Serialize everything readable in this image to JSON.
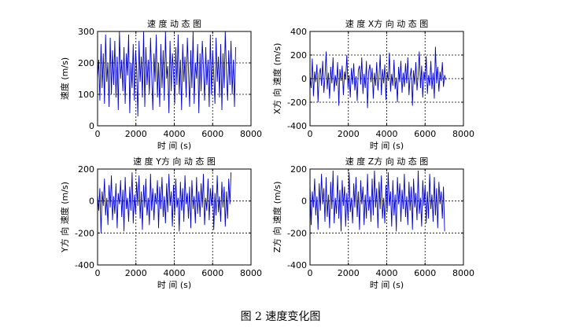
{
  "figure": {
    "caption": "图 2  速度变化图"
  },
  "colors": {
    "series": "#0000cc",
    "axis": "#000000"
  },
  "chart_data": [
    {
      "type": "line",
      "title": "速 度 动 态 图",
      "xlabel": "时 间 (s)",
      "ylabel": "速度 (m/s)",
      "xlim": [
        0,
        8000
      ],
      "ylim": [
        0,
        300
      ],
      "xticks": [
        0,
        2000,
        4000,
        6000,
        8000
      ],
      "yticks": [
        0,
        100,
        200,
        300
      ],
      "xtick_labels": [
        "0",
        "2000",
        "4000",
        "6000",
        "8000"
      ],
      "ytick_labels": [
        "0",
        "100",
        "200",
        "300"
      ],
      "grid": "dotted",
      "series": [
        {
          "x_start": 0,
          "x_step": 60,
          "values": [
            150,
            210,
            80,
            260,
            120,
            230,
            70,
            290,
            140,
            200,
            60,
            280,
            100,
            240,
            130,
            270,
            90,
            220,
            50,
            300,
            150,
            210,
            110,
            250,
            70,
            230,
            160,
            290,
            40,
            200,
            120,
            260,
            80,
            240,
            180,
            30,
            270,
            140,
            220,
            90,
            300,
            60,
            250,
            130,
            210,
            100,
            280,
            170,
            50,
            230,
            140,
            290,
            90,
            200,
            60,
            260,
            120,
            240,
            80,
            300,
            150,
            190,
            40,
            270,
            110,
            230,
            170,
            70,
            250,
            130,
            290,
            100,
            210,
            50,
            260,
            140,
            220,
            90,
            280,
            180,
            60,
            240,
            120,
            300,
            70,
            200,
            150,
            260,
            40,
            230,
            110,
            270,
            190,
            80,
            250,
            130,
            210,
            60,
            290,
            100,
            240,
            160,
            70,
            280,
            140,
            220,
            90,
            260,
            50,
            230,
            120,
            300,
            170,
            80,
            240,
            130,
            270,
            100,
            210,
            60,
            250
          ]
        }
      ]
    },
    {
      "type": "line",
      "title": "速 度 X方 向 动 态 图",
      "xlabel": "时 间 (s)",
      "ylabel": "X方 向 速度 (m/s)",
      "xlim": [
        0,
        8000
      ],
      "ylim": [
        -400,
        400
      ],
      "xticks": [
        0,
        2000,
        4000,
        6000,
        8000
      ],
      "yticks": [
        -400,
        -200,
        0,
        200,
        400
      ],
      "xtick_labels": [
        "0",
        "2000",
        "4000",
        "6000",
        "8000"
      ],
      "ytick_labels": [
        "-400",
        "-200",
        "0",
        "200",
        "400"
      ],
      "grid": "dotted",
      "series": [
        {
          "x_start": 0,
          "x_step": 60,
          "values": [
            20,
            -80,
            170,
            -150,
            60,
            -30,
            120,
            -200,
            40,
            90,
            -60,
            150,
            -120,
            10,
            230,
            -90,
            50,
            -170,
            100,
            -40,
            180,
            -110,
            30,
            -60,
            140,
            -230,
            80,
            -20,
            110,
            -140,
            60,
            -10,
            200,
            -80,
            30,
            -160,
            90,
            -50,
            130,
            -100,
            20,
            -190,
            70,
            110,
            -50,
            180,
            -130,
            40,
            -80,
            150,
            -250,
            60,
            120,
            -30,
            90,
            -170,
            50,
            -60,
            140,
            -100,
            30,
            200,
            -140,
            80,
            -40,
            120,
            -180,
            60,
            -20,
            220,
            -110,
            40,
            -60,
            160,
            -90,
            10,
            -200,
            100,
            -30,
            150,
            -120,
            50,
            -70,
            130,
            -40,
            180,
            -140,
            20,
            90,
            -230,
            70,
            -50,
            140,
            -100,
            40,
            230,
            -80,
            110,
            -160,
            60,
            -20,
            190,
            -130,
            30,
            -60,
            150,
            -90,
            50,
            -170,
            270,
            -40,
            100,
            -110,
            60,
            -20,
            140,
            -70,
            30,
            -10
          ]
        }
      ]
    },
    {
      "type": "line",
      "title": "速 度 Y方 向 动 态 图",
      "xlabel": "时 间 (s)",
      "ylabel": "Y方 向 速度 (m/s)",
      "xlim": [
        0,
        8000
      ],
      "ylim": [
        -400,
        200
      ],
      "xticks": [
        0,
        2000,
        4000,
        6000,
        8000
      ],
      "yticks": [
        -400,
        -200,
        0,
        200
      ],
      "xtick_labels": [
        "0",
        "2000",
        "4000",
        "6000",
        "8000"
      ],
      "ytick_labels": [
        "-400",
        "-200",
        "0",
        "200"
      ],
      "grid": "dotted",
      "series": [
        {
          "x_start": 0,
          "x_step": 60,
          "values": [
            40,
            -60,
            80,
            -200,
            60,
            -30,
            140,
            -90,
            20,
            -150,
            100,
            -40,
            160,
            -120,
            30,
            -80,
            110,
            -170,
            50,
            -20,
            130,
            -100,
            70,
            -190,
            150,
            -50,
            20,
            -130,
            90,
            -60,
            180,
            -140,
            40,
            -80,
            120,
            -30,
            160,
            -110,
            60,
            -180,
            100,
            -40,
            140,
            -90,
            20,
            -150,
            170,
            -60,
            80,
            -120,
            50,
            -20,
            130,
            -170,
            90,
            -50,
            150,
            -100,
            30,
            -140,
            110,
            -70,
            170,
            -30,
            60,
            -160,
            100,
            -90,
            140,
            -40,
            20,
            -190,
            120,
            -60,
            80,
            -130,
            160,
            -20,
            50,
            -110,
            90,
            -170,
            130,
            -50,
            30,
            -140,
            150,
            -80,
            60,
            -100,
            110,
            -40,
            170,
            -150,
            20,
            -60,
            140,
            -120,
            80,
            -30,
            100,
            -180,
            50,
            -90,
            160,
            -70,
            30,
            -130,
            120,
            -40,
            90,
            -160,
            60,
            -110,
            140,
            -20,
            180
          ]
        }
      ]
    },
    {
      "type": "line",
      "title": "速 度 Z方 向 动 态 图",
      "xlabel": "时 间 (s)",
      "ylabel": "Z方 向 速度 (m/s)",
      "xlim": [
        0,
        8000
      ],
      "ylim": [
        -400,
        200
      ],
      "xticks": [
        0,
        2000,
        4000,
        6000,
        8000
      ],
      "yticks": [
        -400,
        -200,
        0,
        200
      ],
      "xtick_labels": [
        "0",
        "2000",
        "4000",
        "6000",
        "8000"
      ],
      "ytick_labels": [
        "-400",
        "-200",
        "0",
        "200"
      ],
      "grid": "dotted",
      "series": [
        {
          "x_start": 0,
          "x_step": 60,
          "values": [
            100,
            -150,
            60,
            -40,
            140,
            -90,
            30,
            -180,
            110,
            -60,
            170,
            -20,
            80,
            -130,
            150,
            -100,
            40,
            -170,
            120,
            -50,
            190,
            -140,
            20,
            -80,
            160,
            -110,
            70,
            -190,
            130,
            -30,
            90,
            -160,
            50,
            -120,
            180,
            -70,
            20,
            -140,
            110,
            -40,
            150,
            -100,
            60,
            -180,
            130,
            -20,
            90,
            -150,
            40,
            -110,
            170,
            -60,
            30,
            -130,
            140,
            -90,
            190,
            -40,
            80,
            -170,
            120,
            -50,
            160,
            -110,
            20,
            -140,
            100,
            -70,
            180,
            -30,
            60,
            -160,
            130,
            -90,
            40,
            -190,
            150,
            -20,
            110,
            -130,
            70,
            -50,
            170,
            -100,
            30,
            -150,
            120,
            -60,
            90,
            -180,
            140,
            -40,
            50,
            -120,
            190,
            -80,
            20,
            -160,
            130,
            -30,
            100,
            -140,
            60,
            -110,
            170,
            -50,
            40,
            -130,
            150,
            -90,
            80,
            -170,
            120,
            -20,
            60,
            -110,
            90,
            -190
          ]
        }
      ]
    }
  ]
}
